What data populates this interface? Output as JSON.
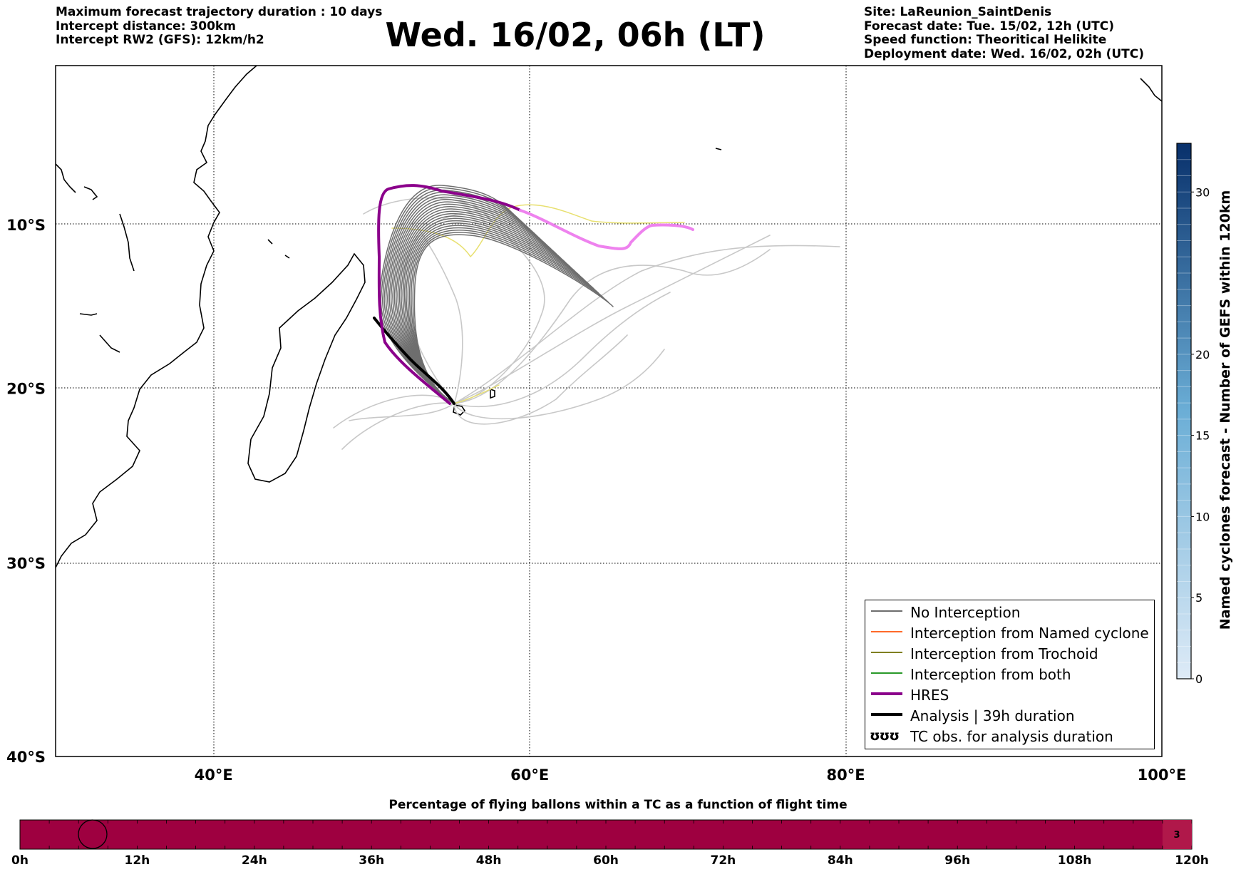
{
  "header": {
    "left_lines": [
      "Maximum forecast trajectory duration : 10 days",
      "Intercept distance: 300km",
      "Intercept RW2 (GFS):  12km/h2"
    ],
    "title": "Wed. 16/02, 06h (LT)",
    "right_lines": [
      "Site: LaReunion_SaintDenis",
      "Forecast date: Tue. 15/02, 12h (UTC)",
      "Speed function: Theoritical Helikite",
      "Deployment date: Wed. 16/02, 02h (UTC)"
    ]
  },
  "map": {
    "lon_range": [
      30,
      100
    ],
    "lat_range": [
      -40,
      0
    ],
    "lon_ticks": [
      {
        "value": 40,
        "label": "40°E"
      },
      {
        "value": 60,
        "label": "60°E"
      },
      {
        "value": 80,
        "label": "80°E"
      },
      {
        "value": 100,
        "label": "100°E"
      }
    ],
    "lat_ticks": [
      {
        "value": -10,
        "label": "10°S"
      },
      {
        "value": -20,
        "label": "20°S"
      },
      {
        "value": -30,
        "label": "30°S"
      },
      {
        "value": -40,
        "label": "40°S"
      }
    ],
    "gridlines": "dotted",
    "colors": {
      "no_interception": "#6e6e6e",
      "light_traj": "#c8c8c8",
      "yellow_traj": "#e8e070",
      "hres": "#8b008b",
      "hres_tail": "#ee82ee",
      "analysis": "#000000",
      "named_cyclone": "#ff6a2a",
      "trochoid": "#808020",
      "both": "#2a9a2a"
    }
  },
  "colorbar": {
    "label": "Named cyclones forecast - Number of GEFS within 120km",
    "range": [
      0,
      33
    ],
    "ticks": [
      {
        "value": 0,
        "label": "0"
      },
      {
        "value": 5,
        "label": "5"
      },
      {
        "value": 10,
        "label": "10"
      },
      {
        "value": 15,
        "label": "15"
      },
      {
        "value": 20,
        "label": "20"
      },
      {
        "value": 30,
        "label": "30"
      }
    ],
    "color_low": "#deebf7",
    "color_high": "#08306b"
  },
  "legend": {
    "items": [
      {
        "label": "No Interception",
        "color": "#6e6e6e",
        "width": 1.5
      },
      {
        "label": "Interception from Named cyclone",
        "color": "#ff6a2a",
        "width": 1.5
      },
      {
        "label": "Interception from Trochoid",
        "color": "#808020",
        "width": 1.5
      },
      {
        "label": "Interception from both",
        "color": "#2a9a2a",
        "width": 1.5
      },
      {
        "label": "HRES",
        "color": "#8b008b",
        "width": 4
      },
      {
        "label": "Analysis | 39h duration",
        "color": "#000000",
        "width": 4
      },
      {
        "label": "TC obs. for analysis duration",
        "symbol": "ʊʊʊ"
      }
    ]
  },
  "bottom_bar": {
    "title": "Percentage of flying ballons within a TC as a function of flight time",
    "ticks": [
      "0h",
      "12h",
      "24h",
      "36h",
      "48h",
      "60h",
      "72h",
      "84h",
      "96h",
      "108h",
      "120h"
    ],
    "range_hours": [
      0,
      120
    ],
    "last_cell_value": "3",
    "bar_color": "#9e0040",
    "last_cell_color": "#b0184a"
  }
}
